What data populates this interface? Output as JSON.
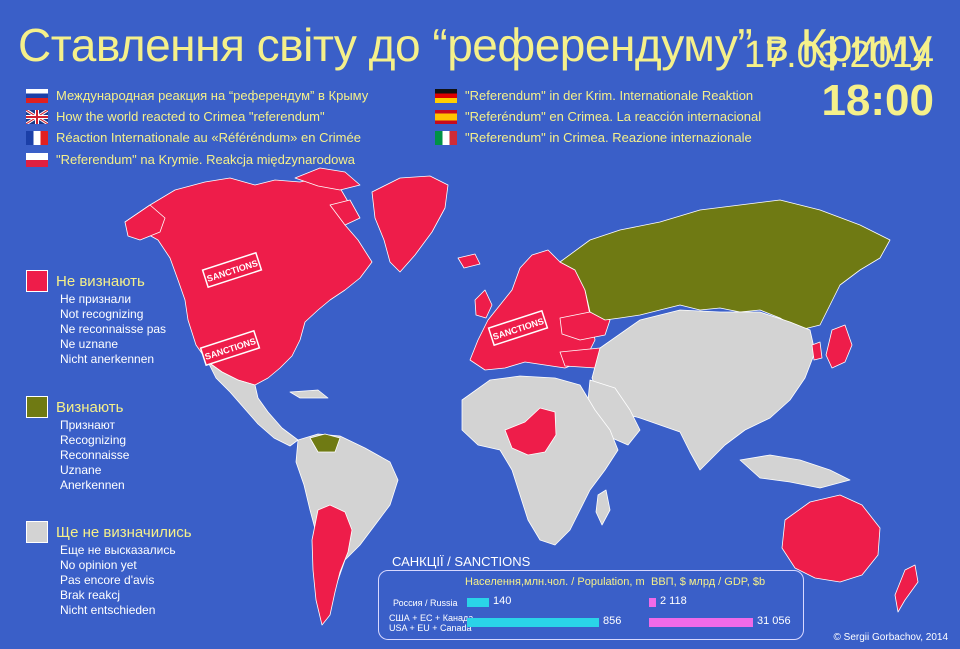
{
  "header": {
    "title": "Ставлення світу до “референдуму” в Криму",
    "date": "17.03.2014",
    "time": "18:00"
  },
  "translations": [
    {
      "flag": "russia",
      "text": "Международная реакция на “референдум” в Крыму"
    },
    {
      "flag": "uk",
      "text": "How the world reacted to Crimea \"referendum\""
    },
    {
      "flag": "france",
      "text": "Réaction Internationale au «Référéndum» en Crimée"
    },
    {
      "flag": "poland",
      "text": "\"Referendum\" na Krymie. Reakcja międzynarodowa"
    },
    {
      "flag": "germany",
      "text": "\"Referendum\" in der Krim. Internationale Reaktion"
    },
    {
      "flag": "spain",
      "text": "\"Referéndum\" en Crimea. La reacción internacional"
    },
    {
      "flag": "italy",
      "text": "\"Referendum\" in Crimea. Reazione internazionale"
    }
  ],
  "legend": {
    "not_recognize": {
      "color": "#ee1d4a",
      "label": "Не визнають",
      "subs": [
        "Не признали",
        "Not recognizing",
        "Ne reconnaisse pas",
        "Ne uznane",
        "Nicht anerkennen"
      ]
    },
    "recognize": {
      "color": "#6f7a13",
      "label": "Визнають",
      "subs": [
        "Признают",
        "Recognizing",
        "Reconnaisse",
        "Uznane",
        "Anerkennen"
      ]
    },
    "undecided": {
      "color": "#d3d3d3",
      "label": "Ще не визначились",
      "subs": [
        "Еще не высказались",
        "No opinion yet",
        "Pas encore d'avis",
        "Brak reakcj",
        "Nicht entschieden"
      ]
    }
  },
  "map": {
    "sanctions_label": "SANCTIONS",
    "ocean_color": "#3a5fc8"
  },
  "sanctions": {
    "title": "САНКЦІЇ / SANCTIONS",
    "population_header": "Населення,млн.чол. / Population, m",
    "gdp_header": "ВВП, $ млрд  /  GDP,  $b",
    "rows": [
      {
        "label_1": "Россия / Russia",
        "label_2": "",
        "population": 140,
        "population_label": "140",
        "gdp": 2118,
        "gdp_label": "2 118"
      },
      {
        "label_1": "США + ЕС + Канада",
        "label_2": "USA + EU + Canada",
        "population": 856,
        "population_label": "856",
        "gdp": 31056,
        "gdp_label": "31 056"
      }
    ],
    "population_color": "#2ad4e8",
    "gdp_color": "#f06ae8"
  },
  "copyright": "© Sergii Gorbachov, 2014"
}
